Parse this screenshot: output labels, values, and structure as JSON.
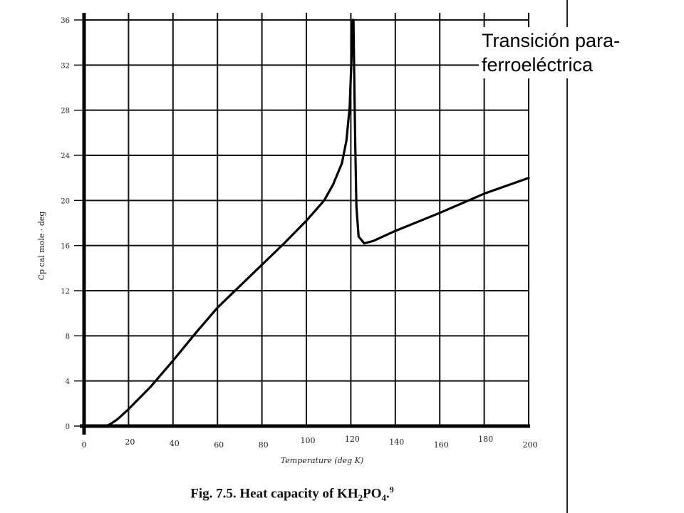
{
  "chart_data": {
    "type": "line",
    "title": "",
    "xlabel": "Temperature (deg K)",
    "ylabel": "Cp cal mole · deg",
    "xlim": [
      0,
      200
    ],
    "ylim": [
      0,
      36
    ],
    "x_ticks": [
      "0",
      "20",
      "40",
      "60",
      "80",
      "100",
      "120",
      "140",
      "160",
      "180",
      "200"
    ],
    "y_ticks": [
      "0",
      "4",
      "8",
      "12",
      "16",
      "20",
      "24",
      "28",
      "32",
      "36"
    ],
    "grid": true,
    "series": [
      {
        "name": "",
        "x": [
          10,
          12,
          15,
          20,
          30,
          40,
          50,
          60,
          70,
          80,
          90,
          100,
          108,
          112,
          116,
          118,
          119.5,
          120.3,
          120.8,
          121.2,
          121.6,
          122,
          122.5,
          123.5,
          126,
          130,
          140,
          160,
          180,
          200
        ],
        "y": [
          0,
          0.2,
          0.6,
          1.5,
          3.5,
          5.8,
          8.2,
          10.5,
          12.4,
          14.3,
          16.2,
          18.2,
          20.0,
          21.4,
          23.3,
          25.3,
          28.3,
          32.5,
          36,
          36,
          30,
          25,
          19.5,
          16.8,
          16.2,
          16.4,
          17.3,
          18.9,
          20.6,
          22.0
        ]
      }
    ],
    "annotations": [
      "Transición para-ferroeléctrica"
    ]
  },
  "annotation": {
    "line1": "Transición para-",
    "line2": "ferroeléctrica"
  },
  "caption": {
    "prefix": "Fig. 7.5.  Heat capacity of KH",
    "sub1": "2",
    "mid": "PO",
    "sub2": "4",
    "suffix": ".",
    "sup": "9"
  }
}
